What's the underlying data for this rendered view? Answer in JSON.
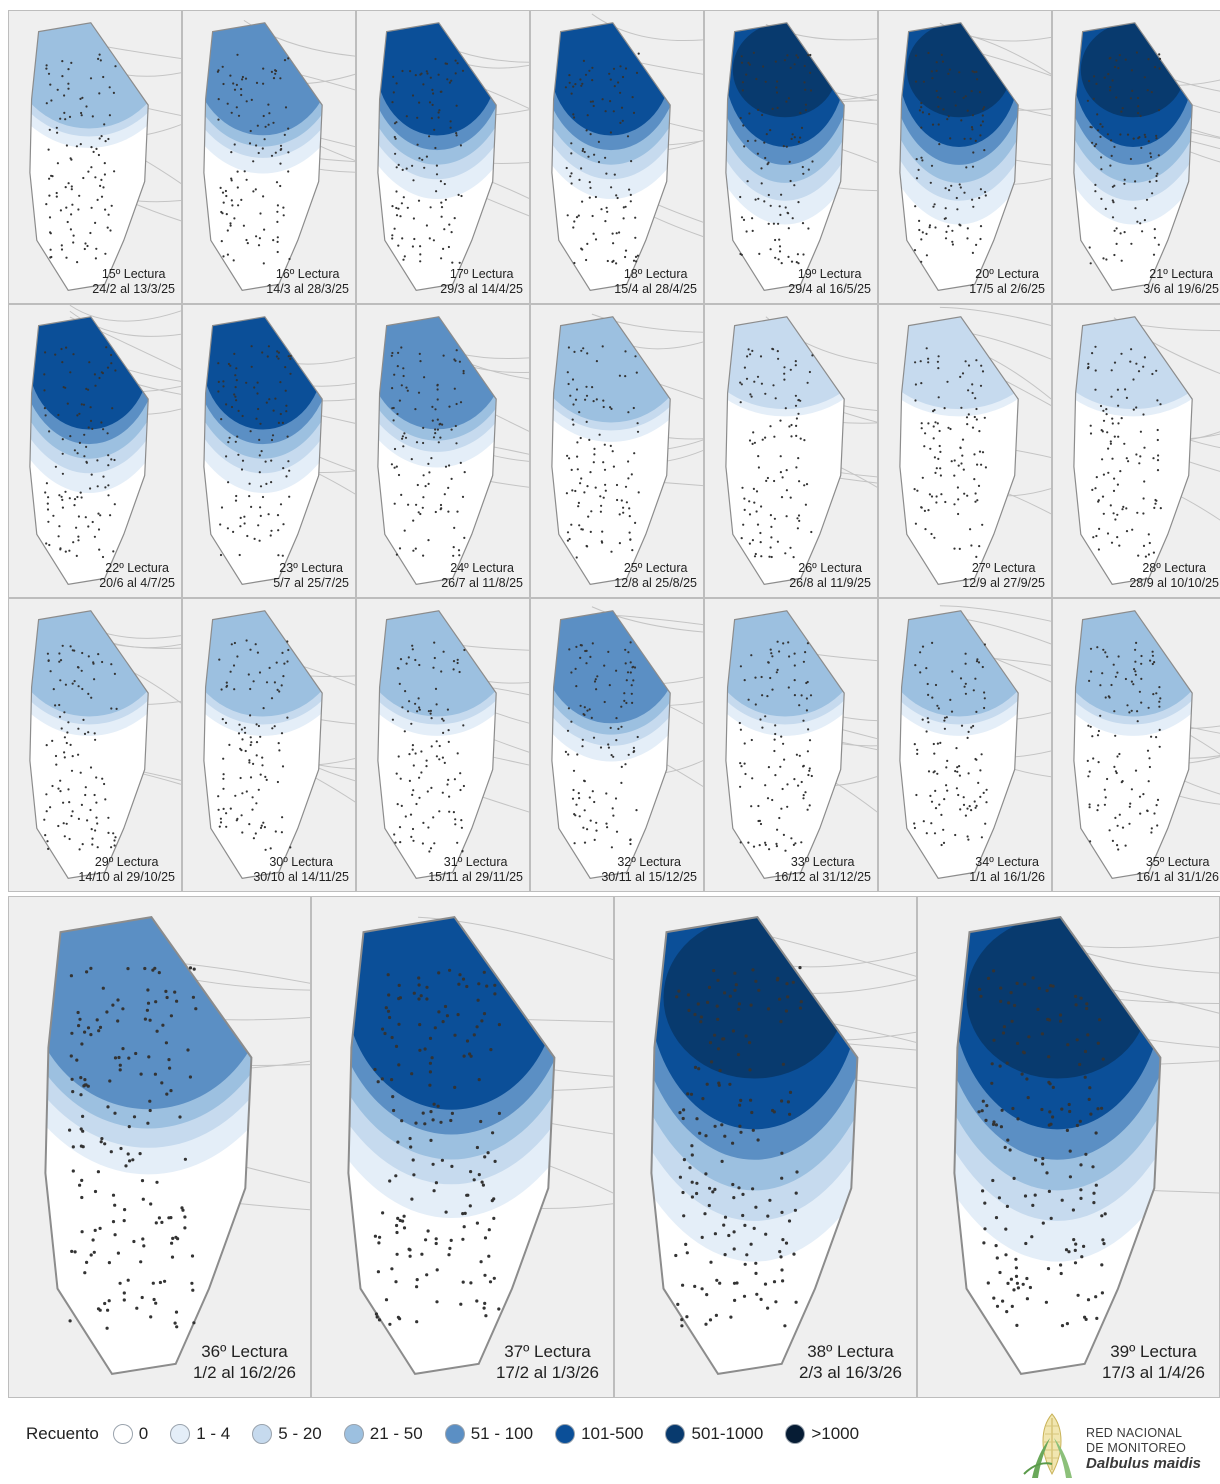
{
  "panels": [
    {
      "reading": "15º Lectura",
      "dates": "24/2 al 13/3/25",
      "level": 1
    },
    {
      "reading": "16º Lectura",
      "dates": "14/3 al 28/3/25",
      "level": 2
    },
    {
      "reading": "17º Lectura",
      "dates": "29/3 al 14/4/25",
      "level": 3
    },
    {
      "reading": "18º Lectura",
      "dates": "15/4 al 28/4/25",
      "level": 3
    },
    {
      "reading": "19º Lectura",
      "dates": "29/4 al 16/5/25",
      "level": 4
    },
    {
      "reading": "20º Lectura",
      "dates": "17/5 al 2/6/25",
      "level": 4
    },
    {
      "reading": "21º Lectura",
      "dates": "3/6 al 19/6/25",
      "level": 4
    },
    {
      "reading": "22º Lectura",
      "dates": "20/6 al 4/7/25",
      "level": 3
    },
    {
      "reading": "23º Lectura",
      "dates": "5/7 al 25/7/25",
      "level": 3
    },
    {
      "reading": "24º Lectura",
      "dates": "26/7 al 11/8/25",
      "level": 2
    },
    {
      "reading": "25º Lectura",
      "dates": "12/8 al 25/8/25",
      "level": 1
    },
    {
      "reading": "26º Lectura",
      "dates": "26/8 al 11/9/25",
      "level": 0
    },
    {
      "reading": "27º Lectura",
      "dates": "12/9 al 27/9/25",
      "level": 0
    },
    {
      "reading": "28º Lectura",
      "dates": "28/9 al 10/10/25",
      "level": 0
    },
    {
      "reading": "29º Lectura",
      "dates": "14/10 al 29/10/25",
      "level": 1
    },
    {
      "reading": "30º Lectura",
      "dates": "30/10 al 14/11/25",
      "level": 1
    },
    {
      "reading": "31º Lectura",
      "dates": "15/11 al 29/11/25",
      "level": 1
    },
    {
      "reading": "32º Lectura",
      "dates": "30/11 al 15/12/25",
      "level": 2
    },
    {
      "reading": "33º Lectura",
      "dates": "16/12 al 31/12/25",
      "level": 1
    },
    {
      "reading": "34º Lectura",
      "dates": "1/1 al 16/1/26",
      "level": 1
    },
    {
      "reading": "35º Lectura",
      "dates": "16/1 al 31/1/26",
      "level": 1
    },
    {
      "reading": "36º Lectura",
      "dates": "1/2 al 16/2/26",
      "level": 2
    },
    {
      "reading": "37º Lectura",
      "dates": "17/2 al 1/3/26",
      "level": 3
    },
    {
      "reading": "38º Lectura",
      "dates": "2/3 al 16/3/26",
      "level": 4
    },
    {
      "reading": "39º Lectura",
      "dates": "17/3 al 1/4/26",
      "level": 4
    }
  ],
  "legend": {
    "title": "Recuento",
    "items": [
      {
        "label": "0",
        "color": "#ffffff"
      },
      {
        "label": "1 - 4",
        "color": "#e4eef8"
      },
      {
        "label": "5 - 20",
        "color": "#c6daee"
      },
      {
        "label": "21 - 50",
        "color": "#9cc0e0"
      },
      {
        "label": "51 - 100",
        "color": "#5b8fc4"
      },
      {
        "label": "101-500",
        "color": "#0b4f98"
      },
      {
        "label": "501-1000",
        "color": "#083a6e"
      },
      {
        "label": ">1000",
        "color": "#061c34"
      }
    ]
  },
  "logo": {
    "line1": "RED NACIONAL",
    "line2": "DE MONITOREO",
    "line3": "Dalbulus maidis"
  }
}
